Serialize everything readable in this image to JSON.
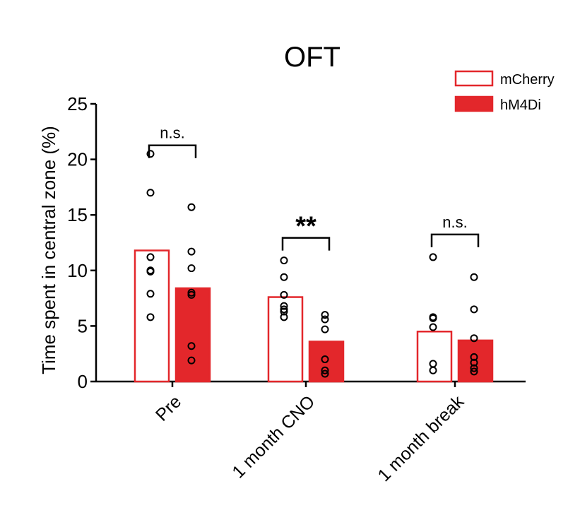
{
  "chart_data": {
    "type": "bar",
    "title": "OFT",
    "xlabel": "",
    "ylabel": "Time spent in central zone (%)",
    "ylim": [
      0,
      25
    ],
    "yticks": [
      0,
      5,
      10,
      15,
      20,
      25
    ],
    "categories": [
      "Pre",
      "1 month CNO",
      "1 month break"
    ],
    "legend_position": "top-right",
    "colors": {
      "accent": "#e3272b",
      "point": "#000000",
      "axis": "#000000"
    },
    "series": [
      {
        "name": "mCherry",
        "style": "hollow",
        "values": [
          11.8,
          7.6,
          4.5
        ],
        "points": [
          [
            20.5,
            17.0,
            11.2,
            10.0,
            9.9,
            7.9,
            5.8
          ],
          [
            10.9,
            9.4,
            7.8,
            6.8,
            6.5,
            6.3,
            5.8
          ],
          [
            11.2,
            5.8,
            5.7,
            4.9,
            1.6,
            1.0
          ]
        ]
      },
      {
        "name": "hM4Di",
        "style": "filled",
        "values": [
          8.4,
          3.6,
          3.7
        ],
        "points": [
          [
            15.7,
            11.7,
            10.2,
            8.0,
            7.8,
            3.2,
            1.9
          ],
          [
            6.0,
            5.6,
            4.7,
            2.0,
            1.0,
            0.7
          ],
          [
            9.4,
            6.5,
            3.9,
            2.2,
            1.7,
            1.2,
            0.9
          ]
        ]
      }
    ],
    "annotations": [
      "n.s.",
      "**",
      "n.s."
    ]
  }
}
